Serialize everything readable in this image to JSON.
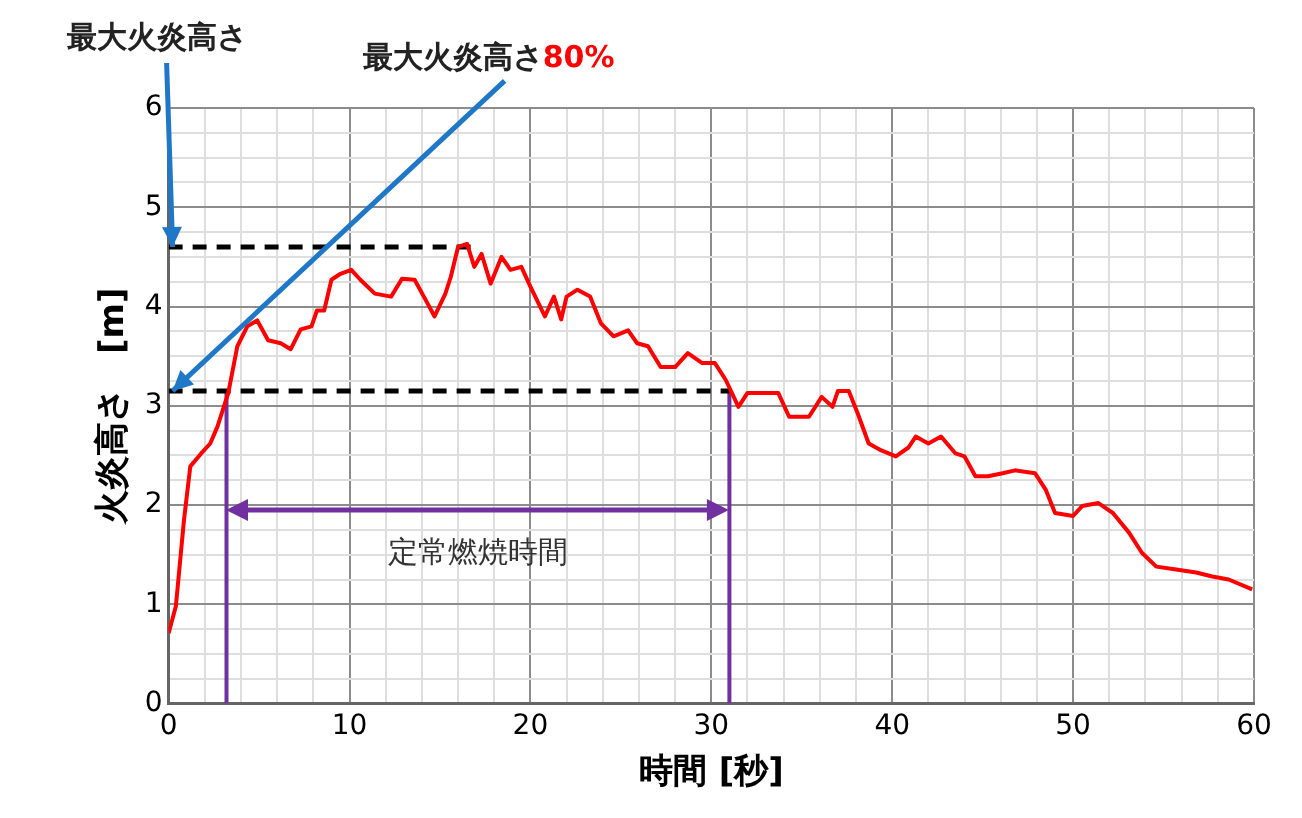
{
  "chart_data": {
    "type": "line",
    "xlabel": "時間 [秒]",
    "ylabel": "火炎高さ　[m]",
    "xlim": [
      0,
      60
    ],
    "ylim": [
      0,
      6
    ],
    "xticks": [
      0,
      {
        "value": 2,
        "label": null
      },
      {
        "value": 4,
        "label": null
      },
      {
        "value": 6,
        "label": null
      },
      {
        "value": 8,
        "label": null
      },
      10,
      {
        "value": 12,
        "label": null
      },
      {
        "value": 14,
        "label": null
      },
      {
        "value": 16,
        "label": null
      },
      {
        "value": 18,
        "label": null
      },
      20,
      {
        "value": 22,
        "label": null
      },
      {
        "value": 24,
        "label": null
      },
      {
        "value": 26,
        "label": null
      },
      {
        "value": 28,
        "label": null
      },
      30,
      {
        "value": 32,
        "label": null
      },
      {
        "value": 34,
        "label": null
      },
      {
        "value": 36,
        "label": null
      },
      {
        "value": 38,
        "label": null
      },
      40,
      {
        "value": 42,
        "label": null
      },
      {
        "value": 44,
        "label": null
      },
      {
        "value": 46,
        "label": null
      },
      {
        "value": 48,
        "label": null
      },
      50,
      {
        "value": 52,
        "label": null
      },
      {
        "value": 54,
        "label": null
      },
      {
        "value": 56,
        "label": null
      },
      {
        "value": 58,
        "label": null
      },
      60
    ],
    "yticks": [
      0,
      {
        "value": 0.25,
        "label": null
      },
      {
        "value": 0.5,
        "label": null
      },
      {
        "value": 0.75,
        "label": null
      },
      1,
      {
        "value": 1.25,
        "label": null
      },
      {
        "value": 1.5,
        "label": null
      },
      {
        "value": 1.75,
        "label": null
      },
      2,
      {
        "value": 2.25,
        "label": null
      },
      {
        "value": 2.5,
        "label": null
      },
      {
        "value": 2.75,
        "label": null
      },
      3,
      {
        "value": 3.25,
        "label": null
      },
      {
        "value": 3.5,
        "label": null
      },
      {
        "value": 3.75,
        "label": null
      },
      4,
      {
        "value": 4.25,
        "label": null
      },
      {
        "value": 4.5,
        "label": null
      },
      {
        "value": 4.75,
        "label": null
      },
      5,
      {
        "value": 5.25,
        "label": null
      },
      {
        "value": 5.5,
        "label": null
      },
      {
        "value": 5.75,
        "label": null
      },
      6
    ],
    "grid": true,
    "legend": false,
    "line_style": "solid",
    "series": [
      {
        "color": "#ff0000",
        "x": [
          0,
          0.4,
          0.85,
          1.2,
          1.8,
          2.3,
          2.7,
          3.3,
          3.8,
          4.35,
          4.9,
          5.5,
          6.2,
          6.75,
          7.3,
          7.9,
          8.2,
          8.6,
          9,
          9.5,
          10.1,
          10.6,
          11.4,
          12.3,
          12.9,
          13.6,
          14.2,
          14.7,
          15.3,
          15.6,
          16,
          16.5,
          16.9,
          17.3,
          17.8,
          18.4,
          18.9,
          19.5,
          20,
          20.8,
          21.3,
          21.7,
          22,
          22.6,
          23.3,
          23.9,
          24.6,
          25.4,
          25.9,
          26.5,
          27.2,
          28,
          28.7,
          29.5,
          30.2,
          30.8,
          31.5,
          32,
          33.1,
          33.7,
          34.3,
          35.4,
          36.1,
          36.7,
          37,
          37.6,
          38.1,
          38.7,
          39.4,
          40.2,
          40.9,
          41.3,
          42,
          42.7,
          43.5,
          44,
          44.6,
          45.3,
          46.1,
          46.8,
          47.9,
          48.5,
          49,
          50,
          50.5,
          51.4,
          52.2,
          53.1,
          53.8,
          54.6,
          55.7,
          56.8,
          57.7,
          58.6,
          59.9
        ],
        "values": [
          0.71,
          0.98,
          1.85,
          2.39,
          2.52,
          2.62,
          2.79,
          3.13,
          3.6,
          3.8,
          3.86,
          3.66,
          3.63,
          3.57,
          3.77,
          3.8,
          3.96,
          3.96,
          4.27,
          4.33,
          4.37,
          4.27,
          4.13,
          4.1,
          4.28,
          4.27,
          4.07,
          3.9,
          4.13,
          4.3,
          4.6,
          4.63,
          4.4,
          4.53,
          4.23,
          4.5,
          4.37,
          4.4,
          4.2,
          3.9,
          4.1,
          3.87,
          4.1,
          4.17,
          4.1,
          3.83,
          3.7,
          3.76,
          3.63,
          3.6,
          3.39,
          3.39,
          3.53,
          3.43,
          3.43,
          3.26,
          2.99,
          3.13,
          3.13,
          3.13,
          2.89,
          2.89,
          3.09,
          2.99,
          3.15,
          3.15,
          2.92,
          2.62,
          2.55,
          2.49,
          2.58,
          2.69,
          2.62,
          2.69,
          2.52,
          2.49,
          2.29,
          2.29,
          2.32,
          2.35,
          2.32,
          2.15,
          1.92,
          1.89,
          1.99,
          2.02,
          1.92,
          1.72,
          1.52,
          1.38,
          1.35,
          1.32,
          1.28,
          1.25,
          1.15
        ]
      },
      {
        "color": "#000000",
        "line_style": "dashed",
        "x": [
          0,
          17
        ],
        "values": [
          4.6,
          4.6
        ]
      },
      {
        "color": "#000000",
        "line_style": "dashed",
        "x": [
          0,
          31
        ],
        "values": [
          3.15,
          3.15
        ]
      },
      {
        "color": "#7030a0",
        "x": [
          3.2,
          3.2
        ],
        "values": [
          0,
          3.15
        ]
      },
      {
        "color": "#7030a0",
        "x": [
          31,
          31
        ],
        "values": [
          0,
          3.15
        ]
      }
    ],
    "annotations": [
      {
        "text": "最大火炎高さ",
        "x": 0,
        "y": 4.6
      },
      {
        "text": "最大火炎高さ80%",
        "x": 0,
        "y": 3.15
      },
      "定常燃焼時間"
    ]
  }
}
